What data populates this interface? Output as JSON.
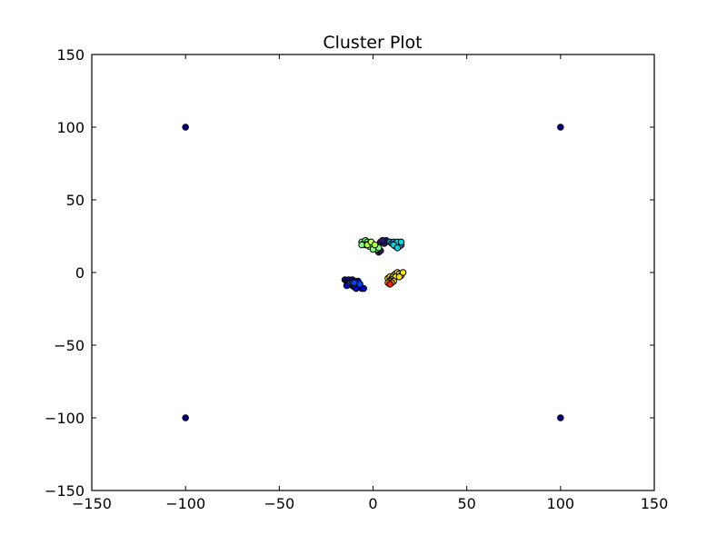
{
  "chart_data": {
    "type": "scatter",
    "title": "Cluster Plot",
    "xlabel": "",
    "ylabel": "",
    "xlim": [
      -150,
      150
    ],
    "ylim": [
      -150,
      150
    ],
    "xticks": [
      -150,
      -100,
      -50,
      0,
      50,
      100,
      150
    ],
    "yticks": [
      -150,
      -100,
      -50,
      0,
      50,
      100,
      150
    ],
    "xtick_labels": [
      "−150",
      "−100",
      "−50",
      "0",
      "50",
      "100",
      "150"
    ],
    "ytick_labels": [
      "−150",
      "−100",
      "−50",
      "0",
      "50",
      "100",
      "150"
    ],
    "grid": false,
    "colormap": "jet",
    "series": [
      {
        "color": "#00007f",
        "points": [
          [
            -100,
            100
          ],
          [
            100,
            100
          ],
          [
            -100,
            -100
          ],
          [
            100,
            -100
          ]
        ]
      },
      {
        "color": "#0000cc",
        "points": [
          [
            -15,
            -5
          ],
          [
            -14,
            -6
          ],
          [
            -13,
            -5
          ],
          [
            -12,
            -6
          ],
          [
            -11,
            -5
          ],
          [
            -10,
            -6
          ],
          [
            -9,
            -7
          ],
          [
            -8,
            -6
          ],
          [
            -12,
            -8
          ],
          [
            -11,
            -9
          ],
          [
            -10,
            -8
          ],
          [
            -9,
            -9
          ],
          [
            -8,
            -10
          ],
          [
            -7,
            -10
          ],
          [
            -6,
            -11
          ],
          [
            -5,
            -11
          ],
          [
            -13,
            -7
          ],
          [
            -10,
            -10
          ],
          [
            -9,
            -11
          ],
          [
            -14,
            -9
          ]
        ]
      },
      {
        "color": "#0044ff",
        "points": [
          [
            -12,
            -7
          ],
          [
            -11,
            -7
          ],
          [
            -10,
            -7
          ],
          [
            -7,
            -8
          ]
        ]
      },
      {
        "color": "#2c1a6b",
        "points": [
          [
            4,
            21
          ],
          [
            6,
            20
          ],
          [
            7,
            22
          ],
          [
            5,
            22
          ],
          [
            3,
            14
          ],
          [
            4,
            15
          ]
        ]
      },
      {
        "color": "#00a8e8",
        "points": [
          [
            9,
            21
          ],
          [
            10,
            20
          ],
          [
            11,
            21
          ],
          [
            12,
            20
          ],
          [
            13,
            19
          ],
          [
            14,
            20
          ],
          [
            15,
            19
          ],
          [
            12,
            18
          ],
          [
            14,
            18
          ]
        ]
      },
      {
        "color": "#00d8e0",
        "points": [
          [
            13,
            21
          ],
          [
            15,
            21
          ],
          [
            11,
            19
          ],
          [
            13,
            17
          ]
        ]
      },
      {
        "color": "#7fff7f",
        "points": [
          [
            -6,
            21
          ],
          [
            -5,
            20
          ],
          [
            -4,
            22
          ],
          [
            -3,
            21
          ],
          [
            -2,
            20
          ],
          [
            -1,
            19
          ],
          [
            0,
            18
          ],
          [
            1,
            17
          ],
          [
            2,
            16
          ],
          [
            3,
            17
          ],
          [
            -2,
            18
          ],
          [
            0,
            16
          ],
          [
            -4,
            19
          ],
          [
            -6,
            19
          ]
        ]
      },
      {
        "color": "#b6ff4a",
        "points": [
          [
            -3,
            19
          ],
          [
            -1,
            21
          ],
          [
            1,
            19
          ]
        ]
      },
      {
        "color": "#ffe600",
        "points": [
          [
            8,
            -4
          ],
          [
            9,
            -3
          ],
          [
            10,
            -4
          ],
          [
            11,
            -2
          ],
          [
            12,
            -1
          ],
          [
            13,
            0
          ],
          [
            14,
            -1
          ],
          [
            15,
            -2
          ],
          [
            16,
            0
          ],
          [
            12,
            -3
          ],
          [
            14,
            -3
          ],
          [
            10,
            -5
          ],
          [
            11,
            -6
          ]
        ]
      },
      {
        "color": "#ff9400",
        "points": [
          [
            9,
            -6
          ],
          [
            10,
            -7
          ],
          [
            8,
            -7
          ]
        ]
      },
      {
        "color": "#ff2200",
        "points": [
          [
            9,
            -8
          ]
        ]
      }
    ]
  }
}
